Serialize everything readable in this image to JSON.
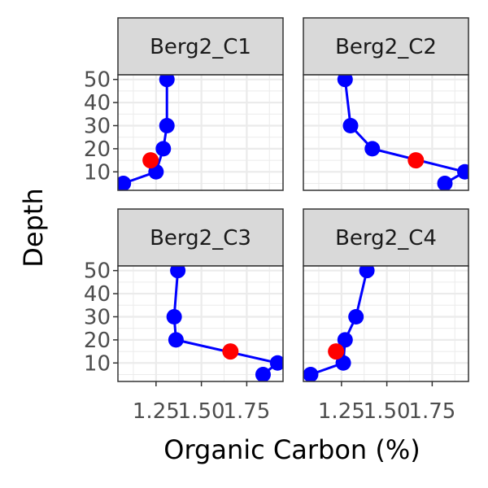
{
  "chart_data": {
    "type": "line",
    "xlabel": "Organic Carbon (%)",
    "ylabel": "Depth",
    "xlim": [
      1.04,
      1.95
    ],
    "ylim": [
      52,
      2
    ],
    "y_reversed": true,
    "x_ticks": [
      1.25,
      1.5,
      1.75
    ],
    "x_tick_labels": [
      "1.25",
      "1.50",
      "1.75"
    ],
    "y_ticks": [
      10,
      20,
      30,
      40,
      50
    ],
    "y_tick_labels": [
      "10",
      "20",
      "30",
      "40",
      "50"
    ],
    "grid": true,
    "layout": "2x2 facets",
    "colors": {
      "line": "#0000ff",
      "points": "#0000ff",
      "highlight": "#ff0000",
      "strip_fill": "#d9d9d9",
      "grid": "#ebebeb"
    },
    "panels": [
      {
        "name": "Berg2_C1",
        "points": [
          {
            "x": 1.07,
            "y": 5
          },
          {
            "x": 1.25,
            "y": 10
          },
          {
            "x": 1.29,
            "y": 20
          },
          {
            "x": 1.31,
            "y": 30
          },
          {
            "x": 1.31,
            "y": 50
          }
        ],
        "highlight": {
          "x": 1.22,
          "y": 15
        }
      },
      {
        "name": "Berg2_C2",
        "points": [
          {
            "x": 1.82,
            "y": 5
          },
          {
            "x": 1.93,
            "y": 10
          },
          {
            "x": 1.42,
            "y": 20
          },
          {
            "x": 1.3,
            "y": 30
          },
          {
            "x": 1.27,
            "y": 50
          }
        ],
        "highlight": {
          "x": 1.66,
          "y": 15
        }
      },
      {
        "name": "Berg2_C3",
        "points": [
          {
            "x": 1.84,
            "y": 5
          },
          {
            "x": 1.92,
            "y": 10
          },
          {
            "x": 1.36,
            "y": 20
          },
          {
            "x": 1.35,
            "y": 30
          },
          {
            "x": 1.37,
            "y": 50
          }
        ],
        "highlight": {
          "x": 1.66,
          "y": 15
        }
      },
      {
        "name": "Berg2_C4",
        "points": [
          {
            "x": 1.08,
            "y": 5
          },
          {
            "x": 1.26,
            "y": 10
          },
          {
            "x": 1.27,
            "y": 20
          },
          {
            "x": 1.33,
            "y": 30
          },
          {
            "x": 1.39,
            "y": 50
          }
        ],
        "highlight": {
          "x": 1.22,
          "y": 15
        }
      }
    ]
  }
}
